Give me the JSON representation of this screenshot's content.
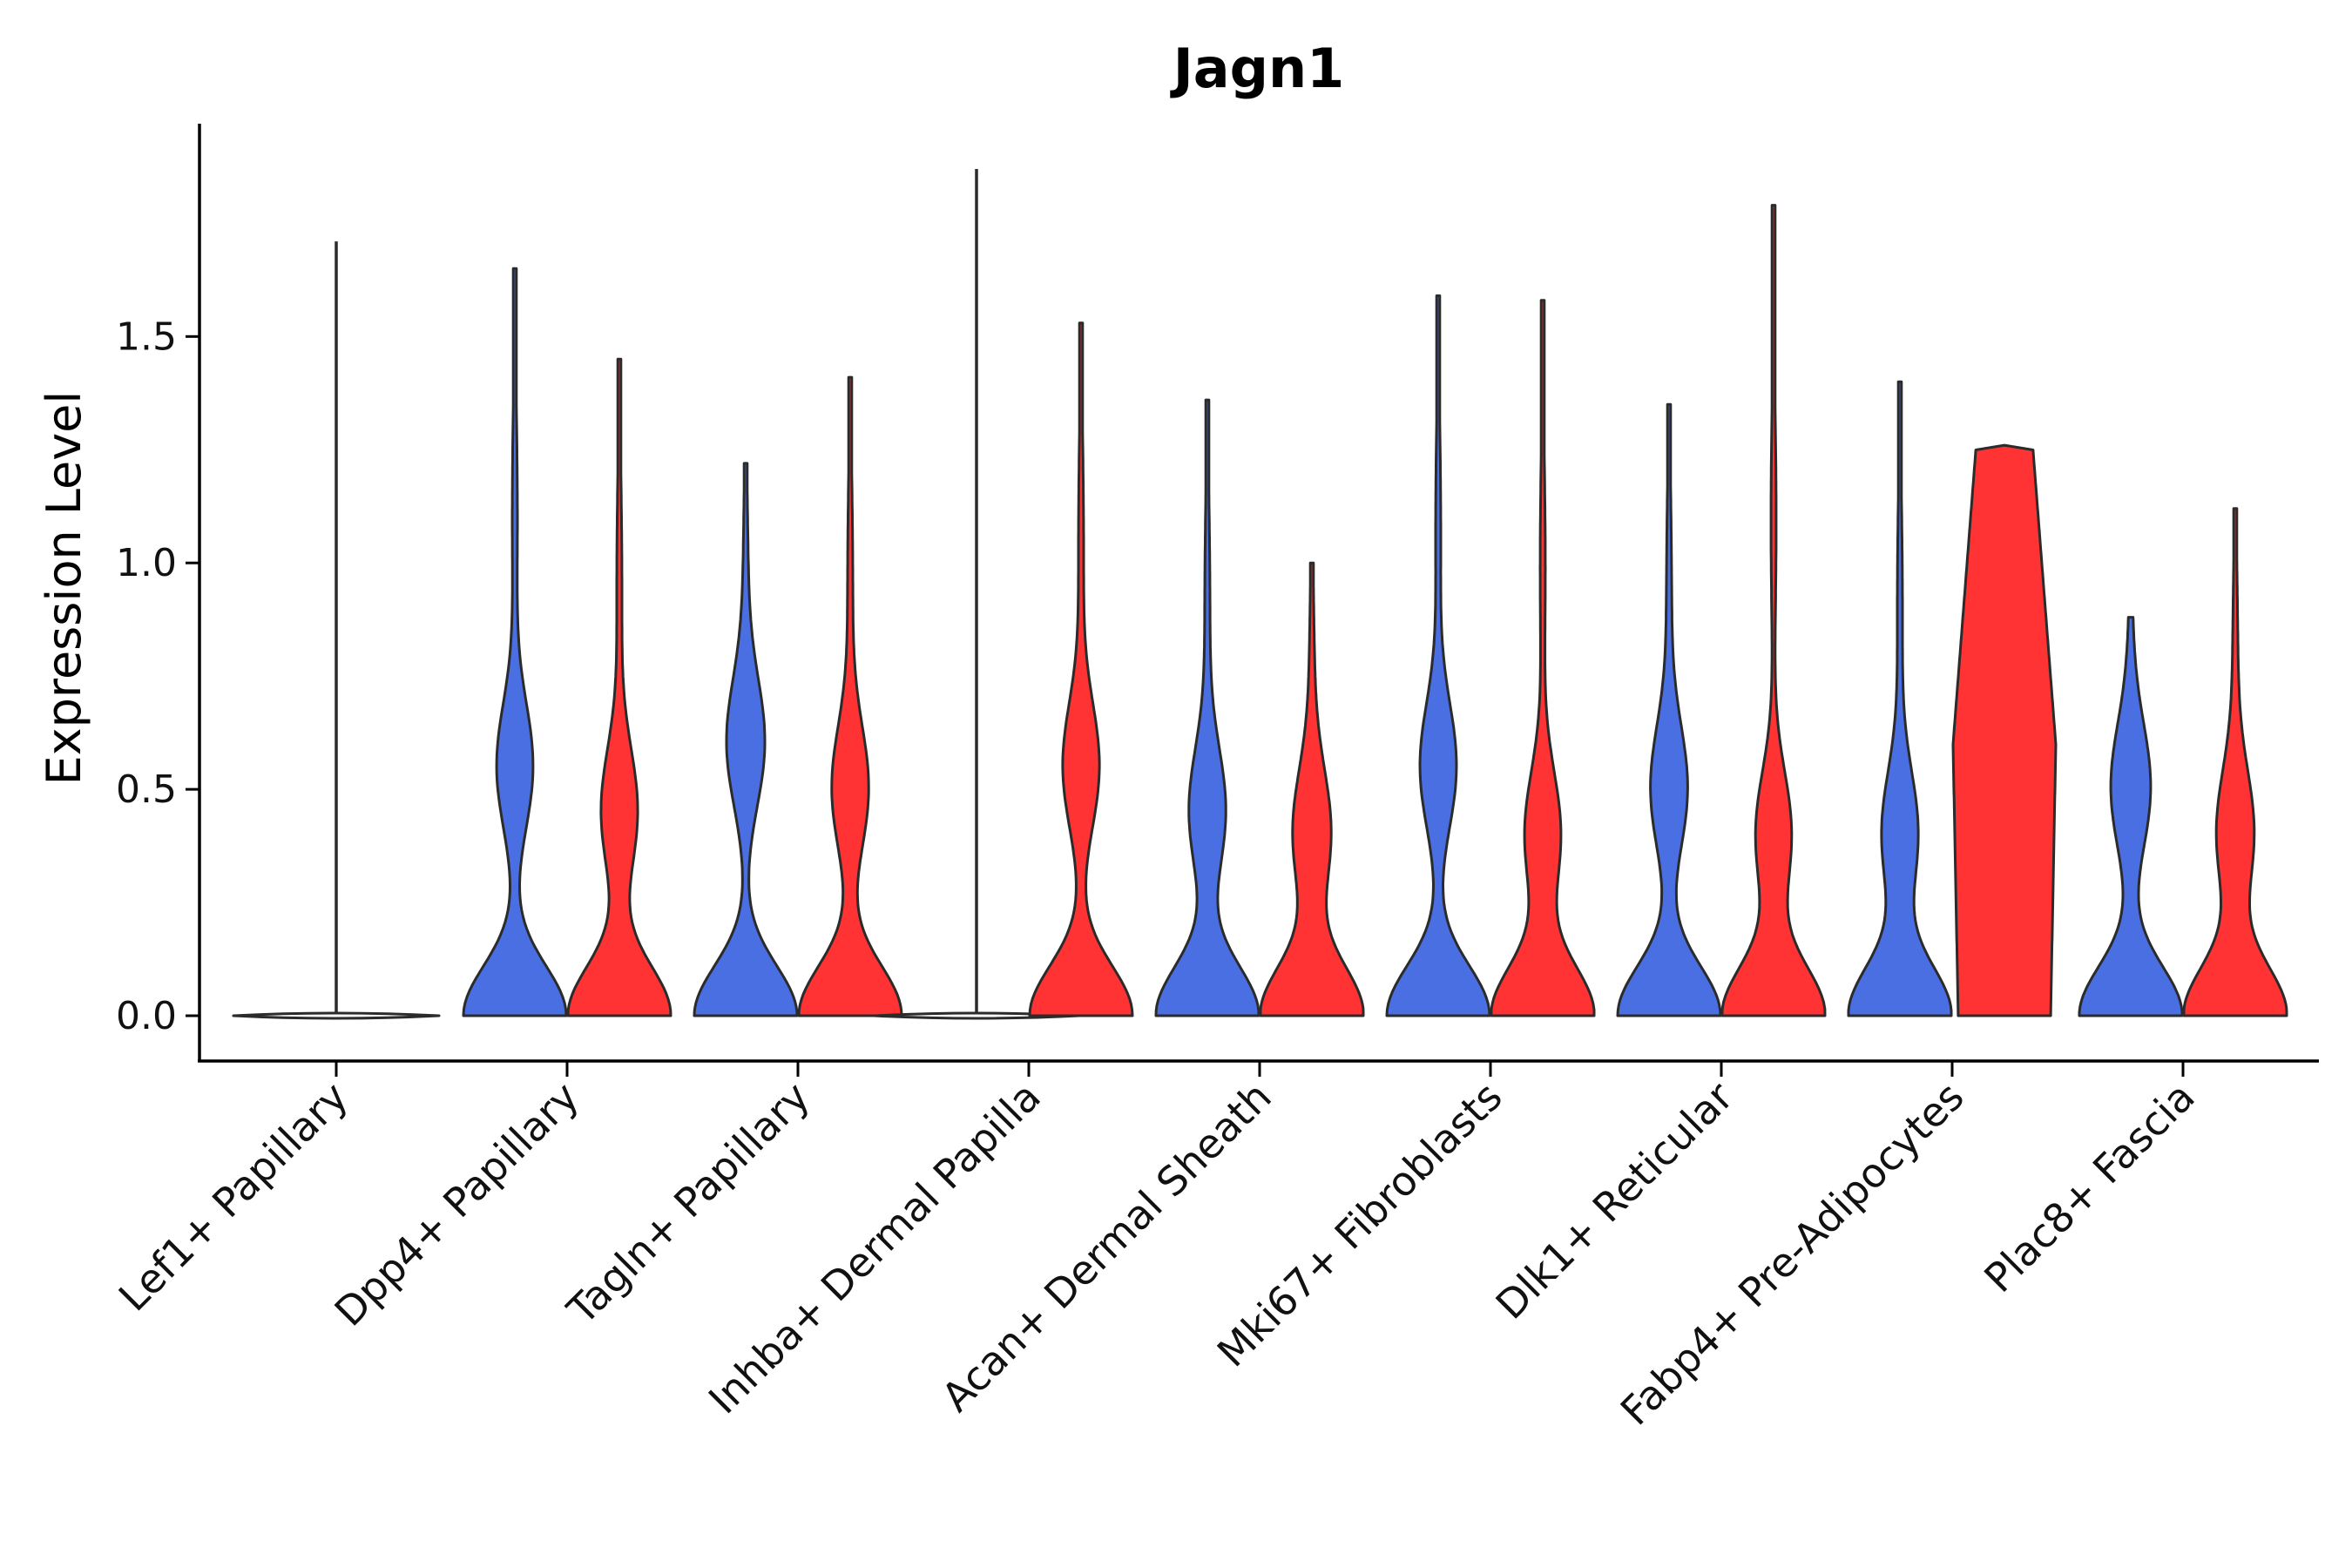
{
  "chart_data": {
    "type": "violin",
    "title": "Jagn1",
    "ylabel": "Expression Level",
    "xlabel": "",
    "ylim": [
      -0.1,
      1.97
    ],
    "yticks": [
      "0.0",
      "0.5",
      "1.0",
      "1.5"
    ],
    "colors": {
      "group1": "#4a6fe3",
      "group2": "#ff3333",
      "single": "#ffffff"
    },
    "categories": [
      "Lef1+ Papillary",
      "Dpp4+ Papillary",
      "Tagln+ Papillary",
      "Inhba+ Dermal Papilla",
      "Acan+ Dermal Sheath",
      "Mki67+ Fibroblasts",
      "Dlk1+ Reticular",
      "Fabp4+ Pre-Adipocytes",
      "Plac8+ Fascia"
    ],
    "violins": [
      {
        "category": 0,
        "group": "single",
        "max": 1.71,
        "shape": "flat"
      },
      {
        "category": 1,
        "group": "group1",
        "max": 1.65,
        "shape": "bimodal",
        "mode": 0.55
      },
      {
        "category": 1,
        "group": "group2",
        "max": 1.45,
        "shape": "bimodal",
        "mode": 0.45
      },
      {
        "category": 2,
        "group": "group1",
        "max": 1.22,
        "shape": "bimodal",
        "mode": 0.6
      },
      {
        "category": 2,
        "group": "group2",
        "max": 1.41,
        "shape": "bimodal",
        "mode": 0.5
      },
      {
        "category": 3,
        "group": "single",
        "max": 1.87,
        "shape": "flat"
      },
      {
        "category": 3,
        "group": "group2",
        "max": 1.53,
        "shape": "bimodal",
        "mode": 0.55
      },
      {
        "category": 4,
        "group": "group1",
        "max": 1.36,
        "shape": "bimodal",
        "mode": 0.45
      },
      {
        "category": 4,
        "group": "group2",
        "max": 1.0,
        "shape": "bimodal",
        "mode": 0.4
      },
      {
        "category": 5,
        "group": "group1",
        "max": 1.59,
        "shape": "bimodal",
        "mode": 0.55
      },
      {
        "category": 5,
        "group": "group2",
        "max": 1.58,
        "shape": "bimodal",
        "mode": 0.4
      },
      {
        "category": 6,
        "group": "group1",
        "max": 1.35,
        "shape": "bimodal",
        "mode": 0.5
      },
      {
        "category": 6,
        "group": "group2",
        "max": 1.79,
        "shape": "bimodal",
        "mode": 0.4
      },
      {
        "category": 7,
        "group": "group1",
        "max": 1.4,
        "shape": "bimodal",
        "mode": 0.4
      },
      {
        "category": 7,
        "group": "group2",
        "max": 1.26,
        "shape": "wide",
        "mode": 0.6
      },
      {
        "category": 8,
        "group": "group1",
        "max": 0.88,
        "shape": "bimodal",
        "mode": 0.5
      },
      {
        "category": 8,
        "group": "group2",
        "max": 1.12,
        "shape": "bimodal",
        "mode": 0.4
      }
    ]
  }
}
